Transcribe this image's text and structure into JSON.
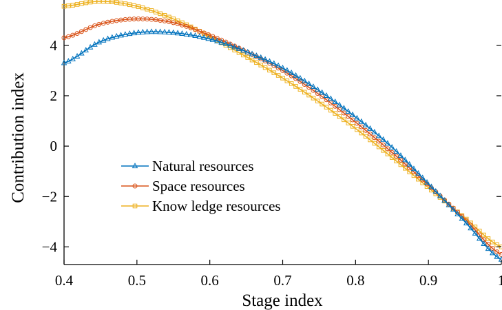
{
  "chart_data": {
    "type": "line",
    "xlabel": "Stage index",
    "ylabel": "Contribution index",
    "xlim": [
      0.4,
      1.0
    ],
    "ylim": [
      -4.7,
      5.8
    ],
    "xticks": [
      0.4,
      0.5,
      0.6,
      0.7,
      0.8,
      0.9,
      1.0
    ],
    "xtick_labels": [
      "0.4",
      "0.5",
      "0.6",
      "0.7",
      "0.8",
      "0.9",
      "1"
    ],
    "yticks": [
      -4,
      -2,
      0,
      2,
      4
    ],
    "ytick_labels": [
      "−4",
      "−2",
      "0",
      "2",
      "4"
    ],
    "grid": false,
    "legend_position": "center-left",
    "x": [
      0.4,
      0.45,
      0.5,
      0.55,
      0.6,
      0.65,
      0.7,
      0.75,
      0.8,
      0.85,
      0.9,
      0.95,
      1.0
    ],
    "series": [
      {
        "name": "Natural resources",
        "color": "#0072BD",
        "marker": "triangle",
        "values": [
          3.3,
          4.15,
          4.5,
          4.5,
          4.25,
          3.75,
          3.1,
          2.2,
          1.15,
          -0.05,
          -1.5,
          -3.0,
          -4.5
        ]
      },
      {
        "name": "Space resources",
        "color": "#D95319",
        "marker": "circle",
        "values": [
          4.3,
          4.85,
          5.05,
          4.9,
          4.4,
          3.75,
          3.0,
          2.05,
          0.95,
          -0.25,
          -1.55,
          -2.9,
          -4.3
        ]
      },
      {
        "name": "Know ledge resources",
        "color": "#EDB120",
        "marker": "square",
        "values": [
          5.55,
          5.75,
          5.55,
          5.05,
          4.35,
          3.55,
          2.7,
          1.75,
          0.7,
          -0.45,
          -1.65,
          -2.85,
          -4.0
        ]
      }
    ]
  }
}
